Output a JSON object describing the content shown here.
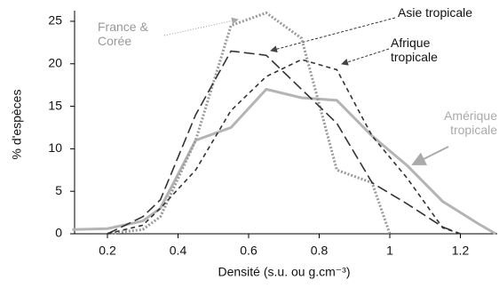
{
  "chart_data": {
    "type": "line",
    "x_label": "Densité (s.u. ou g.cm⁻³)",
    "y_label": "% d'espèces",
    "xlim": [
      0.1,
      1.3
    ],
    "xticks": [
      0.2,
      0.4,
      0.6,
      0.8,
      1.0,
      1.2
    ],
    "ylim": [
      0,
      26
    ],
    "yticks": [
      0,
      5,
      10,
      15,
      20,
      25
    ],
    "series": [
      {
        "name": "Amérique tropicale",
        "color": "#b4b4b4",
        "style": "solid",
        "x": [
          0.1,
          0.2,
          0.3,
          0.35,
          0.45,
          0.55,
          0.65,
          0.75,
          0.85,
          0.95,
          1.05,
          1.15,
          1.25,
          1.3
        ],
        "values": [
          0.5,
          0.6,
          1.5,
          3,
          11,
          12.5,
          17,
          16,
          15.7,
          11.5,
          8,
          3.8,
          1.2,
          0
        ]
      },
      {
        "name": "France & Corée",
        "color": "#9a9a9a",
        "style": "dotted",
        "x": [
          0.2,
          0.3,
          0.35,
          0.45,
          0.55,
          0.65,
          0.75,
          0.85,
          0.95,
          1.0
        ],
        "values": [
          0,
          0.5,
          2,
          11,
          24.5,
          26,
          23,
          7.5,
          6,
          0
        ]
      },
      {
        "name": "Asie tropicale",
        "color": "#333333",
        "style": "long-dash",
        "x": [
          0.2,
          0.3,
          0.35,
          0.45,
          0.55,
          0.65,
          0.75,
          0.85,
          0.95,
          1.05,
          1.15,
          1.2
        ],
        "values": [
          0,
          2,
          4,
          14,
          21.5,
          21,
          17,
          13,
          6,
          3.5,
          0.8,
          0
        ]
      },
      {
        "name": "Afrique tropicale",
        "color": "#333333",
        "style": "short-dash",
        "x": [
          0.2,
          0.3,
          0.35,
          0.45,
          0.55,
          0.65,
          0.75,
          0.85,
          0.95,
          1.05,
          1.15,
          1.2
        ],
        "values": [
          0,
          1,
          3,
          7.5,
          14.5,
          18.5,
          20.5,
          19.3,
          11.5,
          6.5,
          0.7,
          0
        ]
      }
    ]
  }
}
